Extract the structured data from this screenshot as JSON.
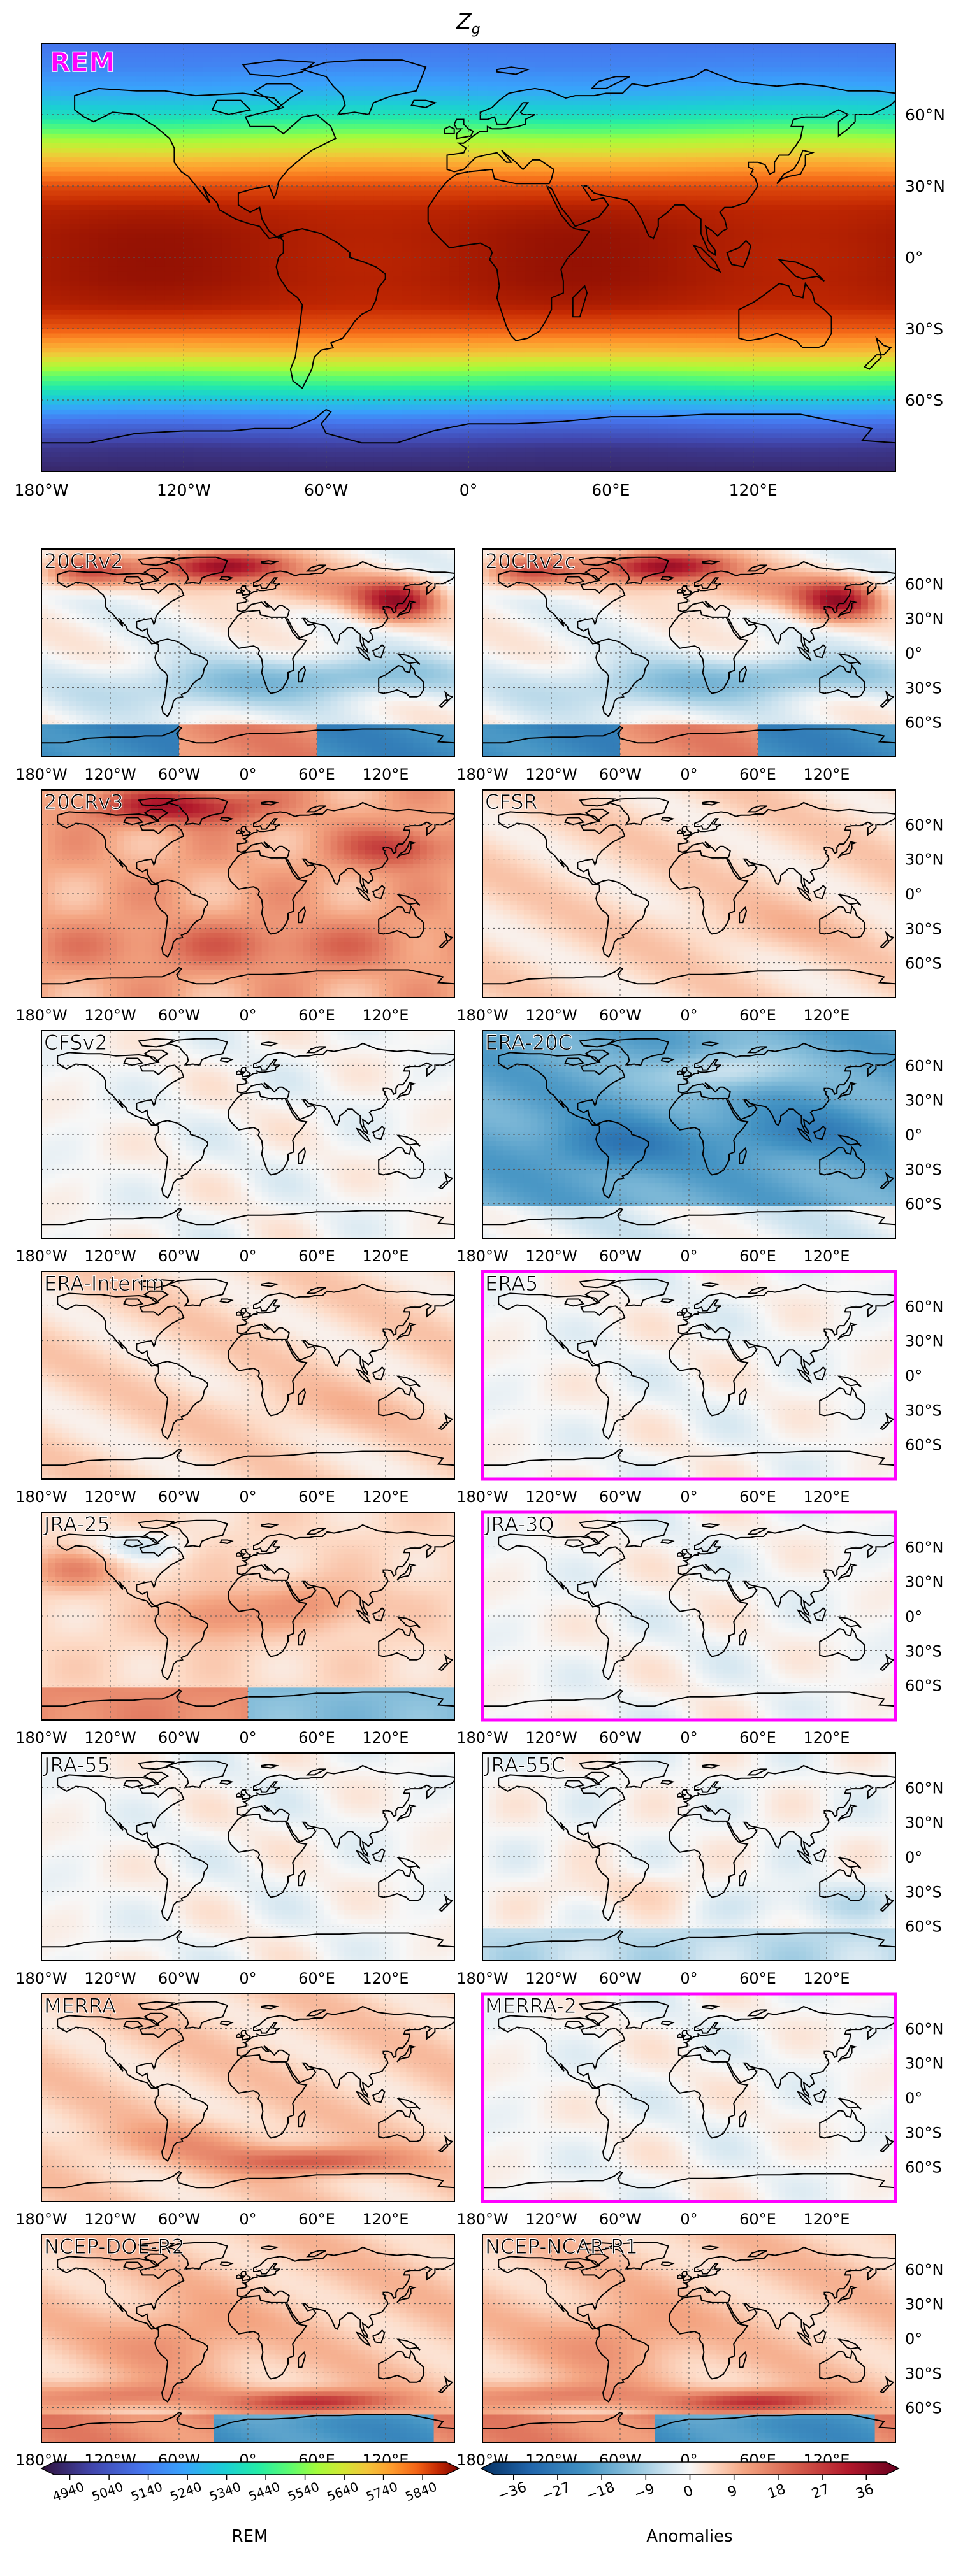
{
  "figure": {
    "title": "Z",
    "title_sub": "g"
  },
  "chart_data": {
    "type": "heatmap",
    "variable": "Zg",
    "longitude_ticks": [
      "180°W",
      "120°W",
      "60°W",
      "0°",
      "60°E",
      "120°E"
    ],
    "latitude_ticks": [
      "60°N",
      "30°N",
      "0°",
      "30°S",
      "60°S"
    ],
    "main_panel": {
      "label": "REM",
      "label_color": "#ff00ff",
      "zonal_profile": {
        "lat": [
          90,
          80,
          70,
          60,
          50,
          40,
          30,
          20,
          10,
          0,
          -10,
          -20,
          -30,
          -40,
          -50,
          -60,
          -70,
          -80,
          -90
        ],
        "value": [
          5140,
          5180,
          5260,
          5380,
          5560,
          5710,
          5820,
          5860,
          5870,
          5870,
          5870,
          5860,
          5810,
          5690,
          5500,
          5320,
          5120,
          4990,
          4950
        ]
      }
    },
    "anomaly_panels": [
      {
        "name": "20CRv2",
        "highlight": false,
        "pattern": "strong_positive_nh"
      },
      {
        "name": "20CRv2c",
        "highlight": false,
        "pattern": "strong_positive_nh"
      },
      {
        "name": "20CRv3",
        "highlight": false,
        "pattern": "positive_broad"
      },
      {
        "name": "CFSR",
        "highlight": false,
        "pattern": "weak_positive"
      },
      {
        "name": "CFSv2",
        "highlight": false,
        "pattern": "near_zero"
      },
      {
        "name": "ERA-20C",
        "highlight": false,
        "pattern": "negative_tropics"
      },
      {
        "name": "ERA-Interim",
        "highlight": false,
        "pattern": "weak_positive"
      },
      {
        "name": "ERA5",
        "highlight": true,
        "pattern": "near_zero"
      },
      {
        "name": "JRA-25",
        "highlight": false,
        "pattern": "mixed_positive"
      },
      {
        "name": "JRA-3Q",
        "highlight": true,
        "pattern": "near_zero"
      },
      {
        "name": "JRA-55",
        "highlight": false,
        "pattern": "near_zero"
      },
      {
        "name": "JRA-55C",
        "highlight": false,
        "pattern": "weak_mixed"
      },
      {
        "name": "MERRA",
        "highlight": false,
        "pattern": "positive_sh"
      },
      {
        "name": "MERRA-2",
        "highlight": true,
        "pattern": "near_zero"
      },
      {
        "name": "NCEP-DOE-R2",
        "highlight": false,
        "pattern": "positive_sh_strong"
      },
      {
        "name": "NCEP-NCAR-R1",
        "highlight": false,
        "pattern": "positive_sh_strong"
      }
    ],
    "colorbar_rem": {
      "label": "REM",
      "ticks": [
        4940,
        5040,
        5140,
        5240,
        5340,
        5440,
        5540,
        5640,
        5740,
        5840
      ],
      "range": [
        4900,
        5900
      ],
      "colormap": "turbo"
    },
    "colorbar_anomaly": {
      "label": "Anomalies",
      "ticks": [
        "−36",
        "−27",
        "−18",
        "−9",
        "0",
        "9",
        "18",
        "27",
        "36"
      ],
      "range": [
        -40,
        40
      ],
      "colormap": "RdBu_r"
    }
  },
  "colors": {
    "highlight_frame": "#ff00ff",
    "coastline": "#000000",
    "gridline": "#555555"
  }
}
